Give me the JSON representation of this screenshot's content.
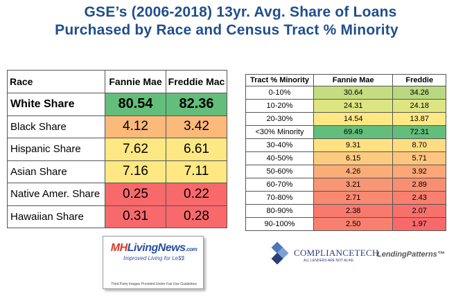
{
  "title": {
    "line1": "GSE’s (2006-2018) 13yr. Avg. Share of Loans",
    "line2": "Purchased by Race and Census Tract % Minority"
  },
  "chart_data": [
    {
      "type": "table",
      "columns": [
        "Race",
        "Fannie Mae",
        "Freddie Mac"
      ],
      "rows": [
        {
          "label": "White Share",
          "values": [
            "80.54",
            "82.36"
          ],
          "color": "#63be7b",
          "bold": true
        },
        {
          "label": "Black Share",
          "values": [
            "4.12",
            "3.42"
          ],
          "color": "#fbb97a",
          "bold": false
        },
        {
          "label": "Hispanic Share",
          "values": [
            "7.62",
            "6.61"
          ],
          "color": "#fde883",
          "bold": false
        },
        {
          "label": "Asian Share",
          "values": [
            "7.16",
            "7.11"
          ],
          "color": "#fde883",
          "bold": false
        },
        {
          "label": "Native Amer. Share",
          "values": [
            "0.25",
            "0.22"
          ],
          "color": "#f8696b",
          "bold": false
        },
        {
          "label": "Hawaiian Share",
          "values": [
            "0.31",
            "0.28"
          ],
          "color": "#f8696b",
          "bold": false
        }
      ]
    },
    {
      "type": "table",
      "columns": [
        "Tract % Minority",
        "Fannie Mae",
        "Freddie"
      ],
      "rows": [
        {
          "label": "0-10%",
          "values": [
            "30.64",
            "34.26"
          ],
          "colors": [
            "#c6dc81",
            "#b9d880"
          ]
        },
        {
          "label": "10-20%",
          "values": [
            "24.31",
            "24.18"
          ],
          "colors": [
            "#dde582",
            "#dde582"
          ]
        },
        {
          "label": "20-30%",
          "values": [
            "14.54",
            "13.87"
          ],
          "colors": [
            "#fde883",
            "#fde883"
          ]
        },
        {
          "label": "<30% Minority",
          "values": [
            "69.49",
            "72.31"
          ],
          "colors": [
            "#63be7b",
            "#63be7b"
          ]
        },
        {
          "label": "30-40%",
          "values": [
            "9.31",
            "8.70"
          ],
          "colors": [
            "#fee182",
            "#fedc81"
          ]
        },
        {
          "label": "40-50%",
          "values": [
            "6.15",
            "5.71"
          ],
          "colors": [
            "#fdcb7e",
            "#fdc57d"
          ]
        },
        {
          "label": "50-60%",
          "values": [
            "4.26",
            "3.92"
          ],
          "colors": [
            "#fbad78",
            "#fba777"
          ]
        },
        {
          "label": "60-70%",
          "values": [
            "3.21",
            "2.89"
          ],
          "colors": [
            "#f99673",
            "#f98f71"
          ]
        },
        {
          "label": "70-80%",
          "values": [
            "2.71",
            "2.43"
          ],
          "colors": [
            "#f98971",
            "#f97f6f"
          ]
        },
        {
          "label": "80-90%",
          "values": [
            "2.38",
            "2.07"
          ],
          "colors": [
            "#f8796e",
            "#f8706c"
          ]
        },
        {
          "label": "90-100%",
          "values": [
            "2.50",
            "1.97"
          ],
          "colors": [
            "#f8806f",
            "#f8696b"
          ]
        }
      ]
    }
  ],
  "logos": {
    "mh_name_a": "MH",
    "mh_name_b": "LivingNews",
    "mh_dot": ".com",
    "mh_tagline": "Improved Living for Le$$",
    "mh_note": "Third Party Images Provided Under Fair Use Guidelines",
    "ct_name": "COMPLIANCETECH",
    "ct_sub": "ALL LENDERS ARE NOT ALIKE",
    "lp_name": "LendingPatterns™"
  }
}
